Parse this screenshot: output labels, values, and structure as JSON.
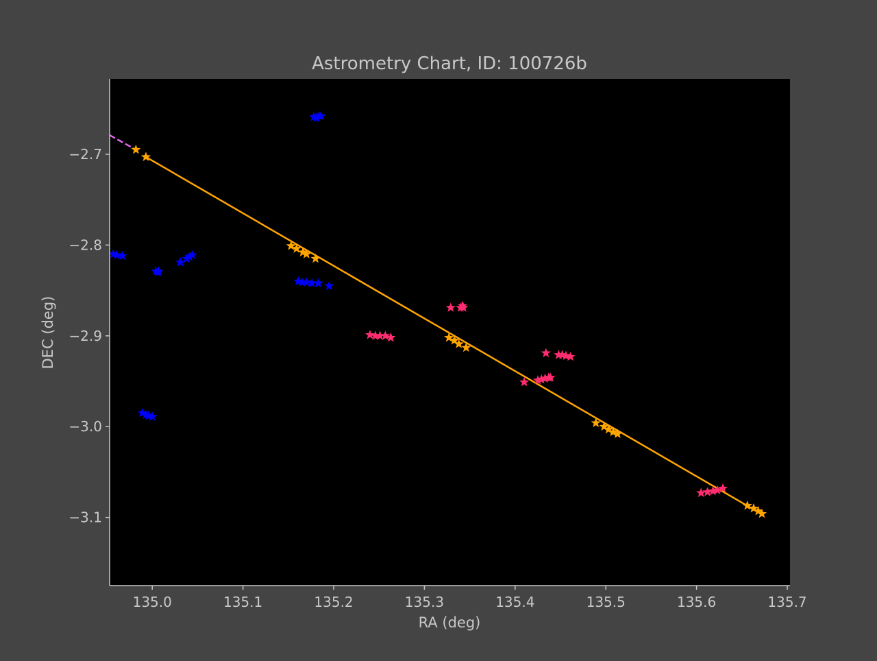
{
  "chart_data": {
    "type": "scatter",
    "title": "Astrometry Chart, ID: 100726b",
    "xlabel": "RA (deg)",
    "ylabel": "DEC (deg)",
    "xlim": [
      134.953,
      135.703
    ],
    "ylim": [
      -3.175,
      -2.617
    ],
    "xticks": [
      135.0,
      135.1,
      135.2,
      135.3,
      135.4,
      135.5,
      135.6,
      135.7
    ],
    "yticks": [
      -2.7,
      -2.8,
      -2.9,
      -3.0,
      -3.1
    ],
    "xtick_labels": [
      "135.0",
      "135.1",
      "135.2",
      "135.3",
      "135.4",
      "135.5",
      "135.6",
      "135.7"
    ],
    "ytick_labels": [
      "−2.7",
      "−2.8",
      "−2.9",
      "−3.0",
      "−3.1"
    ],
    "grid": false,
    "colors": {
      "figure_bg": "#444444",
      "plot_bg": "#000000",
      "axis": "#c8c8c8",
      "text": "#c8c8c8",
      "blue_stars": "#0000ff",
      "red_stars": "#ff2d6f",
      "orange_track": "#ffa500",
      "magenta_dash": "#e066e8"
    },
    "series": [
      {
        "marker": "star",
        "color": "#0000ff",
        "points": [
          [
            135.178,
            -2.659
          ],
          [
            135.181,
            -2.66
          ],
          [
            135.184,
            -2.658
          ],
          [
            135.186,
            -2.658
          ],
          [
            134.957,
            -2.81
          ],
          [
            134.961,
            -2.811
          ],
          [
            134.967,
            -2.812
          ],
          [
            135.004,
            -2.829
          ],
          [
            135.006,
            -2.83
          ],
          [
            135.007,
            -2.829
          ],
          [
            135.031,
            -2.819
          ],
          [
            135.038,
            -2.815
          ],
          [
            135.041,
            -2.813
          ],
          [
            135.044,
            -2.811
          ],
          [
            135.161,
            -2.84
          ],
          [
            135.165,
            -2.841
          ],
          [
            135.17,
            -2.841
          ],
          [
            135.176,
            -2.842
          ],
          [
            135.183,
            -2.842
          ],
          [
            135.195,
            -2.845
          ],
          [
            134.989,
            -2.985
          ],
          [
            134.993,
            -2.987
          ],
          [
            134.996,
            -2.988
          ],
          [
            135.0,
            -2.989
          ]
        ]
      },
      {
        "marker": "star",
        "color": "#ff2d6f",
        "points": [
          [
            135.329,
            -2.869
          ],
          [
            135.34,
            -2.869
          ],
          [
            135.342,
            -2.867
          ],
          [
            135.343,
            -2.869
          ],
          [
            135.24,
            -2.899
          ],
          [
            135.246,
            -2.9
          ],
          [
            135.251,
            -2.9
          ],
          [
            135.257,
            -2.9
          ],
          [
            135.263,
            -2.902
          ],
          [
            135.41,
            -2.951
          ],
          [
            135.425,
            -2.949
          ],
          [
            135.429,
            -2.948
          ],
          [
            135.433,
            -2.947
          ],
          [
            135.437,
            -2.946
          ],
          [
            135.439,
            -2.946
          ],
          [
            135.434,
            -2.919
          ],
          [
            135.448,
            -2.921
          ],
          [
            135.452,
            -2.921
          ],
          [
            135.456,
            -2.922
          ],
          [
            135.461,
            -2.923
          ],
          [
            135.605,
            -3.073
          ],
          [
            135.612,
            -3.072
          ],
          [
            135.618,
            -3.071
          ],
          [
            135.623,
            -3.07
          ],
          [
            135.629,
            -3.068
          ]
        ]
      },
      {
        "marker": "star",
        "color": "#ffa500",
        "points": [
          [
            134.982,
            -2.695
          ],
          [
            134.993,
            -2.703
          ],
          [
            135.153,
            -2.801
          ],
          [
            135.159,
            -2.804
          ],
          [
            135.166,
            -2.808
          ],
          [
            135.17,
            -2.81
          ],
          [
            135.18,
            -2.815
          ],
          [
            135.327,
            -2.902
          ],
          [
            135.333,
            -2.905
          ],
          [
            135.338,
            -2.909
          ],
          [
            135.346,
            -2.913
          ],
          [
            135.489,
            -2.996
          ],
          [
            135.498,
            -3.0
          ],
          [
            135.503,
            -3.003
          ],
          [
            135.508,
            -3.006
          ],
          [
            135.513,
            -3.008
          ],
          [
            135.656,
            -3.087
          ],
          [
            135.663,
            -3.09
          ],
          [
            135.668,
            -3.093
          ],
          [
            135.672,
            -3.096
          ]
        ]
      }
    ],
    "lines": [
      {
        "color": "#ffa500",
        "style": "solid",
        "points": [
          [
            134.993,
            -2.703
          ],
          [
            135.673,
            -3.097
          ]
        ]
      },
      {
        "color": "#e066e8",
        "style": "dashed",
        "points": [
          [
            134.953,
            -2.679
          ],
          [
            134.982,
            -2.695
          ]
        ]
      }
    ]
  }
}
